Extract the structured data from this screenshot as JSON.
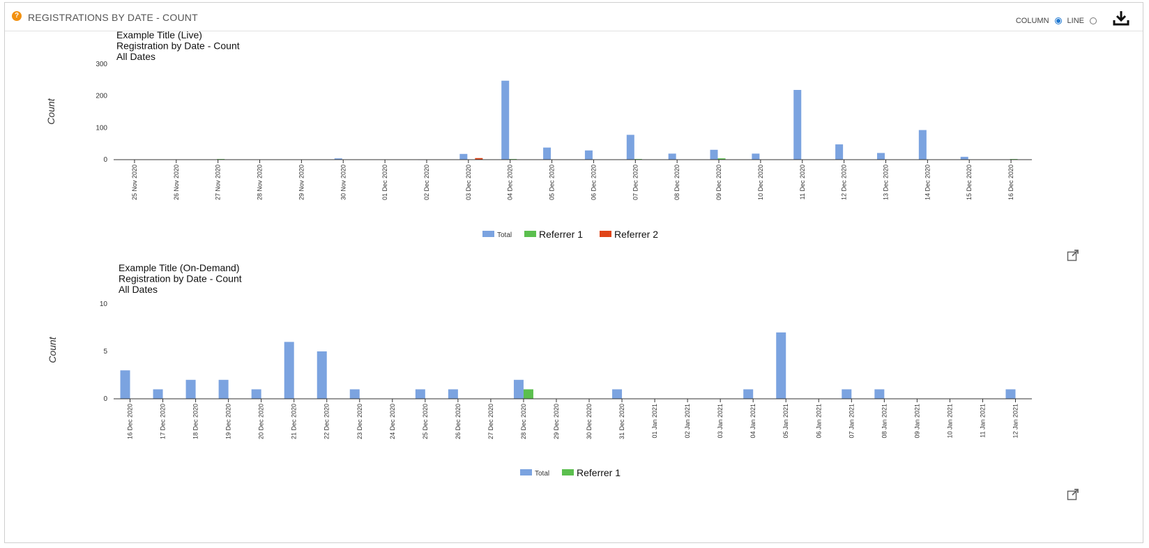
{
  "header": {
    "title": "REGISTRATIONS BY DATE - COUNT",
    "help_icon": "question-circle-icon",
    "toggle_column_label": "COLUMN",
    "toggle_line_label": "LINE",
    "download_icon": "download-icon",
    "popout_icon": "external-window-icon"
  },
  "colors": {
    "total": "#7ba3e0",
    "referrer_1": "#5bbf4e",
    "referrer_2": "#e04418"
  },
  "chart_data": [
    {
      "type": "bar",
      "title_lines": [
        "Example Title (Live)",
        "Registration by Date - Count",
        "All Dates"
      ],
      "ylabel": "Count",
      "xlabel": "",
      "ylim": [
        0,
        300
      ],
      "yticks": [
        0,
        100,
        200,
        300
      ],
      "categories": [
        "25 Nov 2020",
        "26 Nov 2020",
        "27 Nov 2020",
        "28 Nov 2020",
        "29 Nov 2020",
        "30 Nov 2020",
        "01 Dec 2020",
        "02 Dec 2020",
        "03 Dec 2020",
        "04 Dec 2020",
        "05 Dec 2020",
        "06 Dec 2020",
        "07 Dec 2020",
        "08 Dec 2020",
        "09 Dec 2020",
        "10 Dec 2020",
        "11 Dec 2020",
        "12 Dec 2020",
        "13 Dec 2020",
        "14 Dec 2020",
        "15 Dec 2020",
        "16 Dec 2020"
      ],
      "series": [
        {
          "name": "Total",
          "values": [
            0,
            0,
            0,
            0,
            0,
            4,
            0,
            1,
            18,
            248,
            38,
            29,
            78,
            19,
            31,
            19,
            219,
            48,
            21,
            93,
            9,
            0
          ]
        },
        {
          "name": "Referrer 1",
          "values": [
            0,
            0,
            2,
            0,
            0,
            0,
            0,
            0,
            0,
            2,
            0,
            0,
            2,
            0,
            4,
            0,
            0,
            0,
            0,
            0,
            0,
            2
          ]
        },
        {
          "name": "Referrer 2",
          "values": [
            0,
            0,
            0,
            0,
            0,
            0,
            0,
            0,
            5,
            0,
            0,
            0,
            0,
            0,
            0,
            0,
            0,
            0,
            0,
            0,
            0,
            0
          ]
        }
      ],
      "legend": "bottom-center",
      "grid": false
    },
    {
      "type": "bar",
      "title_lines": [
        "Example Title (On-Demand)",
        "Registration by Date - Count",
        "All Dates"
      ],
      "ylabel": "Count",
      "xlabel": "",
      "ylim": [
        0,
        10
      ],
      "yticks": [
        0,
        5,
        10
      ],
      "categories": [
        "16 Dec 2020",
        "17 Dec 2020",
        "18 Dec 2020",
        "19 Dec 2020",
        "20 Dec 2020",
        "21 Dec 2020",
        "22 Dec 2020",
        "23 Dec 2020",
        "24 Dec 2020",
        "25 Dec 2020",
        "26 Dec 2020",
        "27 Dec 2020",
        "28 Dec 2020",
        "29 Dec 2020",
        "30 Dec 2020",
        "31 Dec 2020",
        "01 Jan 2021",
        "02 Jan 2021",
        "03 Jan 2021",
        "04 Jan 2021",
        "05 Jan 2021",
        "06 Jan 2021",
        "07 Jan 2021",
        "08 Jan 2021",
        "09 Jan 2021",
        "10 Jan 2021",
        "11 Jan 2021",
        "12 Jan 2021"
      ],
      "series": [
        {
          "name": "Total",
          "values": [
            3,
            1,
            2,
            2,
            1,
            6,
            5,
            1,
            0,
            1,
            1,
            0,
            2,
            0,
            0,
            1,
            0,
            0,
            0,
            1,
            7,
            0,
            1,
            1,
            0,
            0,
            0,
            1
          ]
        },
        {
          "name": "Referrer 1",
          "values": [
            0,
            0,
            0,
            0,
            0,
            0,
            0,
            0,
            0,
            0,
            0,
            0,
            1,
            0,
            0,
            0,
            0,
            0,
            0,
            0,
            0,
            0,
            0,
            0,
            0,
            0,
            0,
            0
          ]
        }
      ],
      "legend": "bottom-center",
      "grid": false
    }
  ]
}
